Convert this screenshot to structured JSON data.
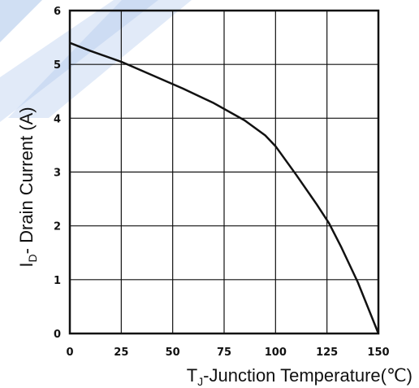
{
  "colors": {
    "line": "#111111",
    "grid": "#111111",
    "watermark": "#a9c4ea"
  },
  "chart_data": {
    "type": "line",
    "title": "",
    "xlabel": {
      "base": "T",
      "sub": "J",
      "rest": "-Junction Temperature(℃)"
    },
    "ylabel": {
      "base": "I",
      "sub": "D",
      "rest": "- Drain Current (A)"
    },
    "xlim": [
      0,
      150
    ],
    "ylim": [
      0,
      6
    ],
    "xticks": [
      "0",
      "25",
      "50",
      "75",
      "100",
      "125",
      "150"
    ],
    "yticks": [
      "0",
      "1",
      "2",
      "3",
      "4",
      "5",
      "6"
    ],
    "grid": true,
    "series": [
      {
        "x": [
          0,
          10,
          25,
          40,
          55,
          70,
          85,
          95,
          100,
          110,
          120,
          126,
          132,
          140,
          150
        ],
        "y": [
          5.4,
          5.25,
          5.05,
          4.8,
          4.55,
          4.28,
          3.96,
          3.68,
          3.48,
          2.95,
          2.4,
          2.05,
          1.6,
          0.95,
          0.0
        ]
      }
    ]
  }
}
